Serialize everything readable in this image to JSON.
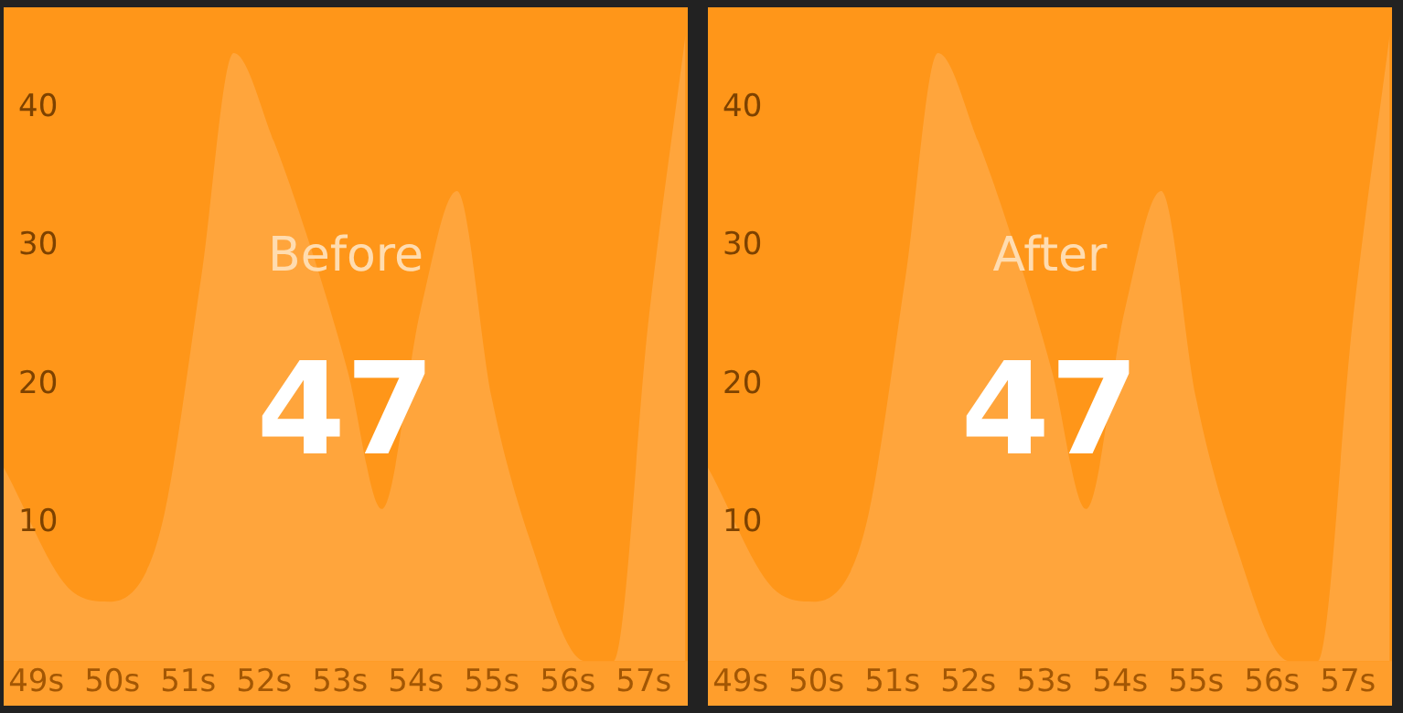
{
  "chart_data": [
    {
      "type": "area",
      "title": "Before",
      "subtitle": "47",
      "x": [
        48.57,
        49.48,
        49.96,
        50.45,
        50.7,
        51.17,
        51.6,
        52.13,
        52.61,
        53.1,
        53.55,
        54.06,
        54.54,
        55.0,
        55.5,
        56.23,
        56.6,
        57.07,
        57.55
      ],
      "series": [
        {
          "color": "#ffa53c",
          "values": [
            14,
            5,
            4.3,
            6.5,
            11,
            27.7,
            44,
            37.6,
            30,
            21,
            11,
            25.4,
            34,
            19,
            8.8,
            0,
            0,
            25,
            45.3
          ]
        }
      ],
      "xlim": [
        48.57,
        57.58
      ],
      "ylim": [
        0,
        47.3
      ],
      "xticks": [
        {
          "value": 49,
          "label": "49s"
        },
        {
          "value": 50,
          "label": "50s"
        },
        {
          "value": 51,
          "label": "51s"
        },
        {
          "value": 52,
          "label": "52s"
        },
        {
          "value": 53,
          "label": "53s"
        },
        {
          "value": 54,
          "label": "54s"
        },
        {
          "value": 55,
          "label": "55s"
        },
        {
          "value": 56,
          "label": "56s"
        },
        {
          "value": 57,
          "label": "57s"
        }
      ],
      "yticks": [
        10,
        20,
        30,
        40
      ],
      "grid": false,
      "legend": false
    },
    {
      "type": "area",
      "title": "After",
      "subtitle": "47",
      "x": [
        48.57,
        49.48,
        49.96,
        50.45,
        50.7,
        51.17,
        51.6,
        52.13,
        52.61,
        53.1,
        53.55,
        54.06,
        54.54,
        55.0,
        55.5,
        56.23,
        56.6,
        57.07,
        57.55
      ],
      "series": [
        {
          "color": "#ffa53c",
          "values": [
            14,
            5,
            4.3,
            6.5,
            11,
            27.7,
            44,
            37.6,
            30,
            21,
            11,
            25.4,
            34,
            19,
            8.8,
            0,
            0,
            25,
            45.3
          ]
        }
      ],
      "xlim": [
        48.57,
        57.58
      ],
      "ylim": [
        0,
        47.3
      ],
      "xticks": [
        {
          "value": 49,
          "label": "49s"
        },
        {
          "value": 50,
          "label": "50s"
        },
        {
          "value": 51,
          "label": "51s"
        },
        {
          "value": 52,
          "label": "52s"
        },
        {
          "value": 53,
          "label": "53s"
        },
        {
          "value": 54,
          "label": "54s"
        },
        {
          "value": 55,
          "label": "55s"
        },
        {
          "value": 56,
          "label": "56s"
        },
        {
          "value": 57,
          "label": "57s"
        }
      ],
      "yticks": [
        10,
        20,
        30,
        40
      ],
      "grid": false,
      "legend": false
    }
  ]
}
